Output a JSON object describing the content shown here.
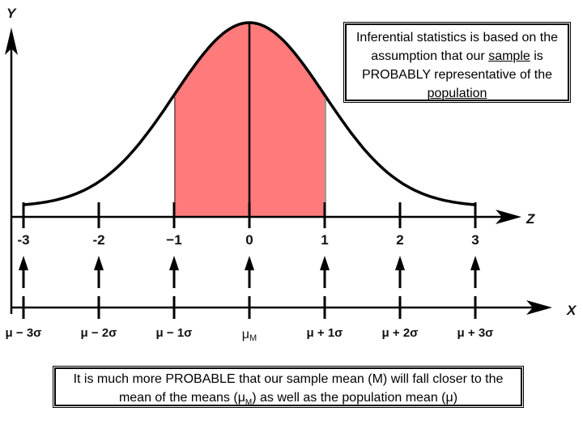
{
  "axes": {
    "y_label": "Y",
    "z_label": "Z",
    "x_label": "X"
  },
  "z_ticks": [
    "-3",
    "-2",
    "−1",
    "0",
    "1",
    "2",
    "3"
  ],
  "x_ticks": [
    "μ − 3σ",
    "μ − 2σ",
    "μ − 1σ",
    "μM",
    "μ + 1σ",
    "μ + 2σ",
    "μ + 3σ"
  ],
  "mu_m": {
    "base": "μ",
    "sub": "M"
  },
  "shaded_region": {
    "from_z": -1,
    "to_z": 1
  },
  "colors": {
    "shade": "#ff7b7b",
    "curve": "#000000",
    "background": "#ffffff"
  },
  "top_note": {
    "part1": "Inferential statistics is based on the assumption that our ",
    "sample": "sample",
    "part2": " is PROBABLY representative of the ",
    "population": "population"
  },
  "bottom_note": {
    "part1": "It is much more PROBABLE that our sample mean (M) will fall closer to the mean of the means (",
    "mu": "μ",
    "sub": "M",
    "part2": ") as well as the population mean (μ)"
  }
}
